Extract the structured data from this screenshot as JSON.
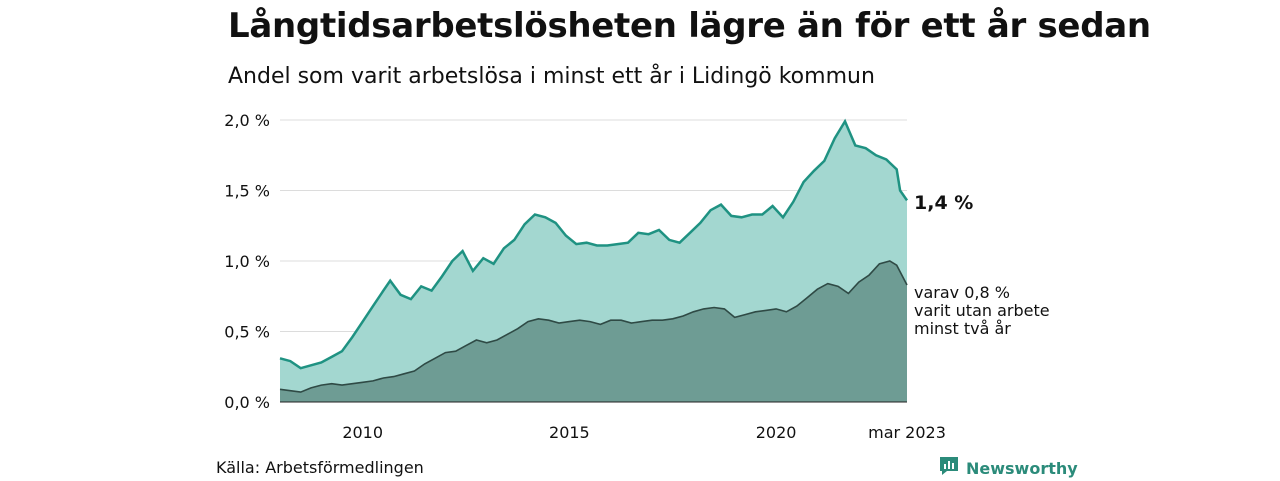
{
  "title": "Långtidsarbetslösheten lägre än för ett år sedan",
  "subtitle": "Andel som varit arbetslösa i minst ett år i Lidingö kommun",
  "source": "Källa: Arbetsförmedlingen",
  "brand": "Newsworthy",
  "colors": {
    "total_fill": "#a3d7d0",
    "total_line": "#1f9282",
    "sub_fill": "#6e9c94",
    "sub_line": "#2f4a45"
  },
  "annotations": {
    "last_total": "1,4 %",
    "sub_line1": "varav 0,8 %",
    "sub_line2": "varit utan arbete",
    "sub_line3": "minst två år"
  },
  "chart_data": {
    "type": "area",
    "x_start": "2008-01",
    "x_end": "2023-03",
    "ylim": [
      0,
      2.0
    ],
    "yticks": [
      {
        "value": 0,
        "label": "0,0 %"
      },
      {
        "value": 0.5,
        "label": "0,5 %"
      },
      {
        "value": 1.0,
        "label": "1,0 %"
      },
      {
        "value": 1.5,
        "label": "1,5 %"
      },
      {
        "value": 2.0,
        "label": "2,0 %"
      }
    ],
    "xticks": [
      {
        "value": "2010-01",
        "label": "2010"
      },
      {
        "value": "2015-01",
        "label": "2015"
      },
      {
        "value": "2020-01",
        "label": "2020"
      },
      {
        "value": "2023-03",
        "label": "mar 2023"
      }
    ],
    "series": [
      {
        "points": [
          [
            "2008-01",
            0.31
          ],
          [
            "2008-04",
            0.29
          ],
          [
            "2008-07",
            0.24
          ],
          [
            "2008-10",
            0.26
          ],
          [
            "2009-01",
            0.28
          ],
          [
            "2009-04",
            0.32
          ],
          [
            "2009-07",
            0.36
          ],
          [
            "2009-10",
            0.46
          ],
          [
            "2010-01",
            0.57
          ],
          [
            "2010-04",
            0.68
          ],
          [
            "2010-07",
            0.79
          ],
          [
            "2010-09",
            0.86
          ],
          [
            "2010-12",
            0.76
          ],
          [
            "2011-03",
            0.73
          ],
          [
            "2011-06",
            0.82
          ],
          [
            "2011-09",
            0.79
          ],
          [
            "2011-12",
            0.89
          ],
          [
            "2012-03",
            1.0
          ],
          [
            "2012-06",
            1.07
          ],
          [
            "2012-09",
            0.93
          ],
          [
            "2012-12",
            1.02
          ],
          [
            "2013-03",
            0.98
          ],
          [
            "2013-06",
            1.09
          ],
          [
            "2013-09",
            1.15
          ],
          [
            "2013-12",
            1.26
          ],
          [
            "2014-03",
            1.33
          ],
          [
            "2014-06",
            1.31
          ],
          [
            "2014-09",
            1.27
          ],
          [
            "2014-12",
            1.18
          ],
          [
            "2015-03",
            1.12
          ],
          [
            "2015-06",
            1.13
          ],
          [
            "2015-09",
            1.11
          ],
          [
            "2015-12",
            1.11
          ],
          [
            "2016-03",
            1.12
          ],
          [
            "2016-06",
            1.13
          ],
          [
            "2016-09",
            1.2
          ],
          [
            "2016-12",
            1.19
          ],
          [
            "2017-03",
            1.22
          ],
          [
            "2017-06",
            1.15
          ],
          [
            "2017-09",
            1.13
          ],
          [
            "2017-12",
            1.2
          ],
          [
            "2018-03",
            1.27
          ],
          [
            "2018-06",
            1.36
          ],
          [
            "2018-09",
            1.4
          ],
          [
            "2018-12",
            1.32
          ],
          [
            "2019-03",
            1.31
          ],
          [
            "2019-06",
            1.33
          ],
          [
            "2019-09",
            1.33
          ],
          [
            "2019-12",
            1.39
          ],
          [
            "2020-03",
            1.31
          ],
          [
            "2020-06",
            1.42
          ],
          [
            "2020-09",
            1.56
          ],
          [
            "2020-12",
            1.64
          ],
          [
            "2021-03",
            1.71
          ],
          [
            "2021-06",
            1.87
          ],
          [
            "2021-09",
            1.99
          ],
          [
            "2021-12",
            1.82
          ],
          [
            "2022-03",
            1.8
          ],
          [
            "2022-06",
            1.75
          ],
          [
            "2022-09",
            1.72
          ],
          [
            "2022-12",
            1.65
          ],
          [
            "2023-01",
            1.5
          ],
          [
            "2023-03",
            1.43
          ]
        ]
      },
      {
        "points": [
          [
            "2008-01",
            0.09
          ],
          [
            "2008-04",
            0.08
          ],
          [
            "2008-07",
            0.07
          ],
          [
            "2008-10",
            0.1
          ],
          [
            "2009-01",
            0.12
          ],
          [
            "2009-04",
            0.13
          ],
          [
            "2009-07",
            0.12
          ],
          [
            "2009-10",
            0.13
          ],
          [
            "2010-01",
            0.14
          ],
          [
            "2010-04",
            0.15
          ],
          [
            "2010-07",
            0.17
          ],
          [
            "2010-10",
            0.18
          ],
          [
            "2011-01",
            0.2
          ],
          [
            "2011-04",
            0.22
          ],
          [
            "2011-07",
            0.27
          ],
          [
            "2011-10",
            0.31
          ],
          [
            "2012-01",
            0.35
          ],
          [
            "2012-04",
            0.36
          ],
          [
            "2012-07",
            0.4
          ],
          [
            "2012-10",
            0.44
          ],
          [
            "2013-01",
            0.42
          ],
          [
            "2013-04",
            0.44
          ],
          [
            "2013-07",
            0.48
          ],
          [
            "2013-10",
            0.52
          ],
          [
            "2014-01",
            0.57
          ],
          [
            "2014-04",
            0.59
          ],
          [
            "2014-07",
            0.58
          ],
          [
            "2014-10",
            0.56
          ],
          [
            "2015-01",
            0.57
          ],
          [
            "2015-04",
            0.58
          ],
          [
            "2015-07",
            0.57
          ],
          [
            "2015-10",
            0.55
          ],
          [
            "2016-01",
            0.58
          ],
          [
            "2016-04",
            0.58
          ],
          [
            "2016-07",
            0.56
          ],
          [
            "2016-10",
            0.57
          ],
          [
            "2017-01",
            0.58
          ],
          [
            "2017-04",
            0.58
          ],
          [
            "2017-07",
            0.59
          ],
          [
            "2017-10",
            0.61
          ],
          [
            "2018-01",
            0.64
          ],
          [
            "2018-04",
            0.66
          ],
          [
            "2018-07",
            0.67
          ],
          [
            "2018-10",
            0.66
          ],
          [
            "2019-01",
            0.6
          ],
          [
            "2019-04",
            0.62
          ],
          [
            "2019-07",
            0.64
          ],
          [
            "2019-10",
            0.65
          ],
          [
            "2020-01",
            0.66
          ],
          [
            "2020-04",
            0.64
          ],
          [
            "2020-07",
            0.68
          ],
          [
            "2020-10",
            0.74
          ],
          [
            "2021-01",
            0.8
          ],
          [
            "2021-04",
            0.84
          ],
          [
            "2021-07",
            0.82
          ],
          [
            "2021-10",
            0.77
          ],
          [
            "2022-01",
            0.85
          ],
          [
            "2022-04",
            0.9
          ],
          [
            "2022-07",
            0.98
          ],
          [
            "2022-10",
            1.0
          ],
          [
            "2022-12",
            0.97
          ],
          [
            "2023-03",
            0.83
          ]
        ]
      }
    ]
  }
}
